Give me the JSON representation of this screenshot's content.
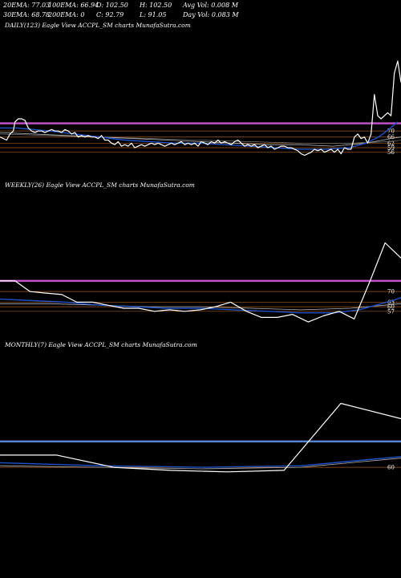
{
  "stats": {
    "ema20": "20EMA: 77.03",
    "ema100": "100EMA: 66.94",
    "open": "O: 102.50",
    "high": "H: 102.50",
    "avgvol": "Avg Vol: 0.008  M",
    "ema30": "30EMA: 68.78",
    "ema200": "200EMA: 0",
    "close": "C: 92.79",
    "low": "L: 91.05",
    "dayvol": "Day Vol: 0.083  M"
  },
  "colors": {
    "background": "#000000",
    "price": "#ffffff",
    "ema_blue": "#1e50c8",
    "band_magenta": "#c050c8",
    "band_blue": "#5a82d2",
    "level_orange": "#a05a1e"
  },
  "chart_data": [
    {
      "type": "line",
      "label": "DAILY(123) Eagle   View  ACCPL_SM charts MunafaSutra.com",
      "level_labels": [
        "70",
        "66",
        "62",
        "59",
        "56"
      ],
      "price_range": [
        40,
        135
      ],
      "band": 75,
      "levels": [
        70,
        66,
        62,
        59,
        56
      ],
      "series": [
        {
          "points": [
            [
              0,
              66
            ],
            [
              4,
              65
            ],
            [
              8,
              64
            ],
            [
              12,
              68
            ],
            [
              16,
              70
            ],
            [
              18,
              76
            ],
            [
              22,
              78
            ],
            [
              26,
              78
            ],
            [
              30,
              77
            ],
            [
              34,
              72
            ],
            [
              38,
              70
            ],
            [
              42,
              69
            ],
            [
              46,
              70
            ],
            [
              50,
              70
            ],
            [
              54,
              69
            ],
            [
              58,
              70
            ],
            [
              62,
              71
            ],
            [
              66,
              70
            ],
            [
              70,
              70
            ],
            [
              74,
              69
            ],
            [
              78,
              71
            ],
            [
              82,
              70
            ],
            [
              86,
              68
            ],
            [
              90,
              69
            ],
            [
              94,
              66
            ],
            [
              98,
              67
            ],
            [
              102,
              66
            ],
            [
              106,
              67
            ],
            [
              110,
              66
            ],
            [
              114,
              66
            ],
            [
              118,
              65
            ],
            [
              122,
              67
            ],
            [
              126,
              64
            ],
            [
              130,
              64
            ],
            [
              134,
              62
            ],
            [
              138,
              61
            ],
            [
              142,
              63
            ],
            [
              146,
              60
            ],
            [
              150,
              61
            ],
            [
              154,
              60
            ],
            [
              158,
              62
            ],
            [
              162,
              59
            ],
            [
              166,
              60
            ],
            [
              170,
              61
            ],
            [
              174,
              60
            ],
            [
              178,
              61
            ],
            [
              182,
              62
            ],
            [
              186,
              61
            ],
            [
              190,
              62
            ],
            [
              194,
              61
            ],
            [
              198,
              60
            ],
            [
              202,
              61
            ],
            [
              206,
              62
            ],
            [
              210,
              61
            ],
            [
              214,
              62
            ],
            [
              218,
              63
            ],
            [
              222,
              61
            ],
            [
              226,
              62
            ],
            [
              230,
              61
            ],
            [
              234,
              62
            ],
            [
              238,
              60
            ],
            [
              242,
              63
            ],
            [
              246,
              62
            ],
            [
              250,
              61
            ],
            [
              254,
              63
            ],
            [
              258,
              62
            ],
            [
              262,
              64
            ],
            [
              266,
              62
            ],
            [
              270,
              63
            ],
            [
              274,
              62
            ],
            [
              278,
              61
            ],
            [
              282,
              63
            ],
            [
              286,
              64
            ],
            [
              290,
              62
            ],
            [
              294,
              60
            ],
            [
              298,
              61
            ],
            [
              302,
              60
            ],
            [
              306,
              61
            ],
            [
              310,
              59
            ],
            [
              314,
              60
            ],
            [
              318,
              61
            ],
            [
              322,
              59
            ],
            [
              326,
              60
            ],
            [
              330,
              58
            ],
            [
              334,
              59
            ],
            [
              338,
              60
            ],
            [
              342,
              60
            ],
            [
              346,
              59
            ],
            [
              350,
              59
            ],
            [
              354,
              58
            ],
            [
              358,
              57
            ],
            [
              362,
              55
            ],
            [
              366,
              54
            ],
            [
              370,
              55
            ],
            [
              374,
              56
            ],
            [
              378,
              58
            ],
            [
              382,
              57
            ],
            [
              386,
              58
            ],
            [
              390,
              56
            ],
            [
              394,
              57
            ],
            [
              398,
              58
            ],
            [
              402,
              56
            ],
            [
              406,
              58
            ],
            [
              410,
              55
            ],
            [
              414,
              59
            ],
            [
              418,
              58
            ],
            [
              422,
              58
            ],
            [
              426,
              66
            ],
            [
              430,
              68
            ],
            [
              434,
              65
            ],
            [
              438,
              66
            ],
            [
              442,
              62
            ],
            [
              446,
              68
            ],
            [
              450,
              94
            ],
            [
              454,
              80
            ],
            [
              458,
              78
            ],
            [
              462,
              80
            ],
            [
              466,
              82
            ],
            [
              470,
              80
            ],
            [
              474,
              108
            ],
            [
              478,
              116
            ],
            [
              482,
              102
            ]
          ]
        },
        {
          "points": [
            [
              0,
              72
            ],
            [
              20,
              72
            ],
            [
              40,
              71
            ],
            [
              60,
              70
            ],
            [
              90,
              68
            ],
            [
              120,
              66
            ],
            [
              150,
              64
            ],
            [
              180,
              63
            ],
            [
              210,
              62
            ],
            [
              240,
              62
            ],
            [
              270,
              61
            ],
            [
              300,
              60
            ],
            [
              330,
              59
            ],
            [
              360,
              58
            ],
            [
              390,
              58
            ],
            [
              420,
              59
            ],
            [
              440,
              62
            ],
            [
              455,
              66
            ],
            [
              465,
              70
            ],
            [
              478,
              76
            ]
          ]
        },
        {
          "points": [
            [
              0,
              69
            ],
            [
              40,
              68
            ],
            [
              80,
              67
            ],
            [
              120,
              66
            ],
            [
              160,
              65
            ],
            [
              200,
              64
            ],
            [
              240,
              63
            ],
            [
              280,
              62
            ],
            [
              320,
              61
            ],
            [
              360,
              61
            ],
            [
              400,
              60
            ],
            [
              440,
              62
            ],
            [
              470,
              65
            ],
            [
              482,
              66
            ]
          ]
        },
        {
          "points": [
            [
              0,
              68
            ],
            [
              60,
              67
            ],
            [
              120,
              66
            ],
            [
              180,
              65
            ],
            [
              240,
              64
            ],
            [
              300,
              63
            ],
            [
              360,
              62
            ],
            [
              420,
              62
            ],
            [
              470,
              63
            ],
            [
              482,
              64
            ]
          ]
        }
      ]
    },
    {
      "type": "line",
      "label": "WEEKLY(26) Eagle   View  ACCPL_SM charts MunafaSutra.com",
      "level_labels": [
        "70",
        "63",
        "60",
        "57"
      ],
      "price_range": [
        40,
        135
      ],
      "band": 77,
      "levels": [
        70,
        63,
        60,
        57
      ],
      "series": [
        {
          "points": [
            [
              0,
              77
            ],
            [
              18,
              77
            ],
            [
              36,
              70
            ],
            [
              55,
              69
            ],
            [
              74,
              68
            ],
            [
              92,
              63
            ],
            [
              111,
              63
            ],
            [
              129,
              61
            ],
            [
              148,
              59
            ],
            [
              166,
              59
            ],
            [
              185,
              57
            ],
            [
              203,
              58
            ],
            [
              221,
              57
            ],
            [
              240,
              58
            ],
            [
              258,
              60
            ],
            [
              276,
              63
            ],
            [
              295,
              57
            ],
            [
              313,
              53
            ],
            [
              332,
              53
            ],
            [
              350,
              55
            ],
            [
              369,
              50
            ],
            [
              387,
              54
            ],
            [
              406,
              57
            ],
            [
              424,
              52
            ],
            [
              443,
              77
            ],
            [
              461,
              102
            ],
            [
              480,
              92
            ]
          ]
        },
        {
          "points": [
            [
              0,
              65
            ],
            [
              40,
              64
            ],
            [
              80,
              63
            ],
            [
              120,
              61
            ],
            [
              160,
              60
            ],
            [
              200,
              59
            ],
            [
              240,
              59
            ],
            [
              280,
              58
            ],
            [
              320,
              57
            ],
            [
              360,
              56
            ],
            [
              400,
              56
            ],
            [
              430,
              58
            ],
            [
              450,
              61
            ],
            [
              470,
              64
            ],
            [
              480,
              66
            ]
          ]
        },
        {
          "points": [
            [
              0,
              62
            ],
            [
              60,
              62
            ],
            [
              120,
              61
            ],
            [
              180,
              60
            ],
            [
              240,
              60
            ],
            [
              300,
              59
            ],
            [
              360,
              58
            ],
            [
              420,
              59
            ],
            [
              460,
              61
            ],
            [
              480,
              62
            ]
          ]
        }
      ]
    },
    {
      "type": "line",
      "label": "MONTHLY(7) Eagle   View  ACCPL_SM charts MunafaSutra.com",
      "level_labels": [
        "60"
      ],
      "price_range": [
        40,
        135
      ],
      "band": 77,
      "levels": [
        60
      ],
      "series": [
        {
          "points": [
            [
              0,
              68
            ],
            [
              68,
              68
            ],
            [
              136,
              60
            ],
            [
              204,
              58
            ],
            [
              272,
              57
            ],
            [
              340,
              58
            ],
            [
              408,
              102
            ],
            [
              480,
              92
            ]
          ]
        },
        {
          "points": [
            [
              0,
              63
            ],
            [
              120,
              61
            ],
            [
              240,
              60
            ],
            [
              360,
              61
            ],
            [
              420,
              64
            ],
            [
              480,
              67
            ]
          ]
        },
        {
          "points": [
            [
              0,
              61
            ],
            [
              120,
              60
            ],
            [
              240,
              59
            ],
            [
              360,
              60
            ],
            [
              420,
              63
            ],
            [
              480,
              66
            ]
          ]
        }
      ]
    }
  ]
}
